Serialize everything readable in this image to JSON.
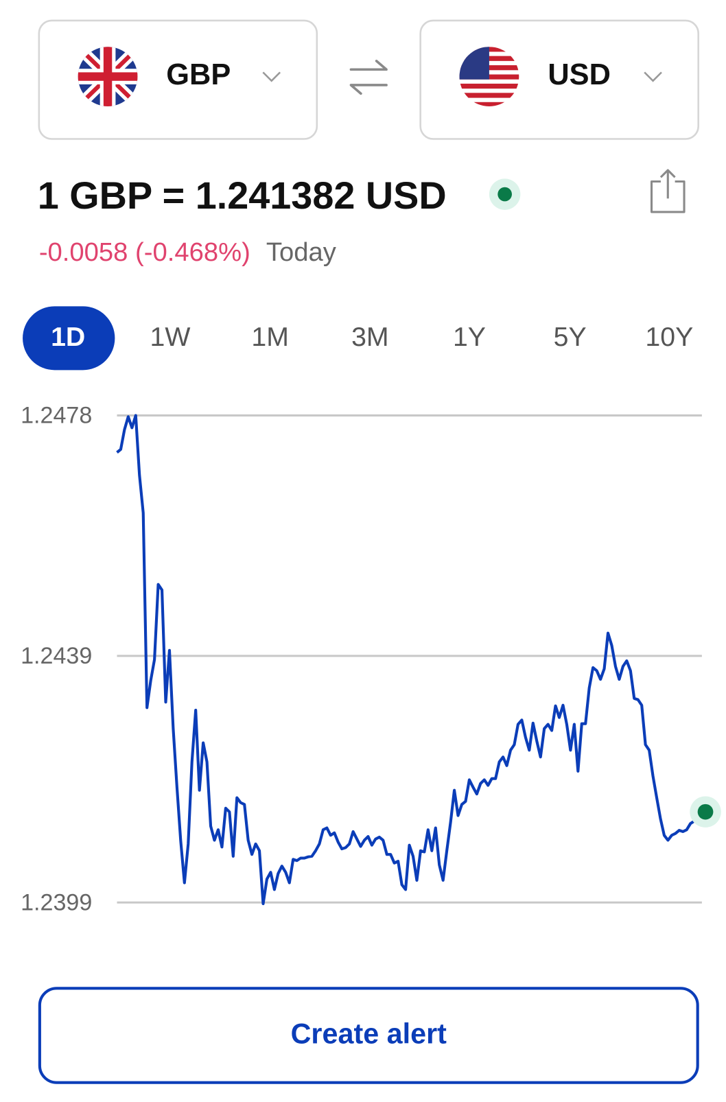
{
  "selector": {
    "from": "GBP",
    "to": "USD"
  },
  "rate": {
    "text": "1 GBP = 1.241382 USD",
    "change": "-0.0058 (-0.468%)",
    "period": "Today"
  },
  "tabs": [
    "1D",
    "1W",
    "1M",
    "3M",
    "1Y",
    "5Y",
    "10Y"
  ],
  "chart_data": {
    "type": "line",
    "color": "#0b3db8",
    "ylim": [
      1.2399,
      1.2478
    ],
    "yticks": [
      1.2478,
      1.2439,
      1.2399
    ],
    "grid": true,
    "values": [
      1.2472,
      1.24725,
      1.24757,
      1.24778,
      1.2476,
      1.2478,
      1.24683,
      1.24622,
      1.24306,
      1.2435,
      1.24384,
      1.24506,
      1.24497,
      1.24315,
      1.24399,
      1.24272,
      1.24177,
      1.2409,
      1.24022,
      1.24085,
      1.24218,
      1.24302,
      1.24172,
      1.24249,
      1.24218,
      1.24114,
      1.24091,
      1.24108,
      1.2408,
      1.24143,
      1.24137,
      1.24065,
      1.2416,
      1.24152,
      1.24149,
      1.24091,
      1.24068,
      1.24085,
      1.24074,
      1.23988,
      1.24028,
      1.24039,
      1.24011,
      1.24037,
      1.24049,
      1.24039,
      1.24022,
      1.2406,
      1.24058,
      1.24062,
      1.24062,
      1.24064,
      1.24065,
      1.24074,
      1.24085,
      1.24108,
      1.24111,
      1.24099,
      1.24103,
      1.24088,
      1.24077,
      1.24079,
      1.24085,
      1.24105,
      1.24093,
      1.24081,
      1.24091,
      1.24097,
      1.24083,
      1.24093,
      1.24096,
      1.24091,
      1.24068,
      1.24068,
      1.24054,
      1.24057,
      1.24019,
      1.24011,
      1.24083,
      1.24065,
      1.24026,
      1.24074,
      1.24072,
      1.24108,
      1.24074,
      1.24111,
      1.24051,
      1.24026,
      1.24074,
      1.2412,
      1.24172,
      1.24131,
      1.24149,
      1.24154,
      1.24189,
      1.24177,
      1.24166,
      1.24183,
      1.24189,
      1.2418,
      1.24191,
      1.24191,
      1.24218,
      1.24226,
      1.24212,
      1.24237,
      1.24246,
      1.24279,
      1.24286,
      1.24258,
      1.24237,
      1.24281,
      1.24252,
      1.24226,
      1.24272,
      1.24279,
      1.24269,
      1.24309,
      1.2429,
      1.2431,
      1.24279,
      1.24237,
      1.24279,
      1.24203,
      1.2428,
      1.2428,
      1.24338,
      1.24371,
      1.24366,
      1.24352,
      1.24369,
      1.24427,
      1.24407,
      1.24373,
      1.24352,
      1.24373,
      1.24382,
      1.24366,
      1.24321,
      1.24319,
      1.2431,
      1.24246,
      1.24237,
      1.24195,
      1.2416,
      1.24126,
      1.24099,
      1.24091,
      1.24099,
      1.24102,
      1.24107,
      1.24105,
      1.24108,
      1.24118,
      1.24122,
      1.24129,
      1.24134,
      1.24137
    ]
  },
  "button": "Create alert"
}
